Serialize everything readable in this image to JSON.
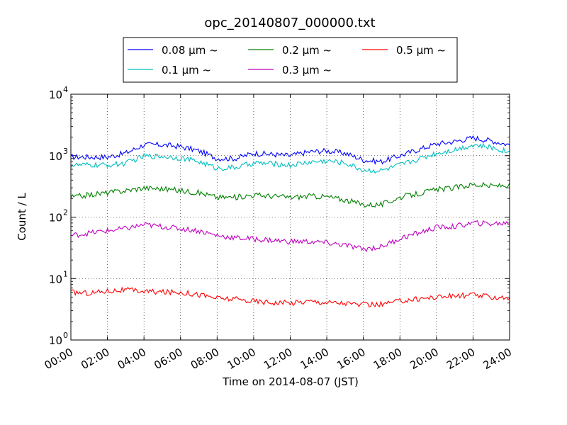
{
  "chart_data": {
    "type": "line",
    "title": "opc_20140807_000000.txt",
    "xlabel": "Time on 2014-08-07 (JST)",
    "ylabel": "Count / L",
    "x_unit": "hours",
    "xlim": [
      0,
      24
    ],
    "ylim": [
      1,
      10000
    ],
    "yscale": "log",
    "grid": true,
    "legend_position": "top",
    "x_ticks": [
      {
        "value": 0,
        "label": "00:00"
      },
      {
        "value": 2,
        "label": "02:00"
      },
      {
        "value": 4,
        "label": "04:00"
      },
      {
        "value": 6,
        "label": "06:00"
      },
      {
        "value": 8,
        "label": "08:00"
      },
      {
        "value": 10,
        "label": "10:00"
      },
      {
        "value": 12,
        "label": "12:00"
      },
      {
        "value": 14,
        "label": "14:00"
      },
      {
        "value": 16,
        "label": "16:00"
      },
      {
        "value": 18,
        "label": "18:00"
      },
      {
        "value": 20,
        "label": "20:00"
      },
      {
        "value": 22,
        "label": "22:00"
      },
      {
        "value": 24,
        "label": "24:00"
      }
    ],
    "y_ticks": [
      {
        "value": 1,
        "base": "10",
        "exp": "0"
      },
      {
        "value": 10,
        "base": "10",
        "exp": "1"
      },
      {
        "value": 100,
        "base": "10",
        "exp": "2"
      },
      {
        "value": 1000,
        "base": "10",
        "exp": "3"
      },
      {
        "value": 10000,
        "base": "10",
        "exp": "4"
      }
    ],
    "x": [
      0,
      1,
      2,
      3,
      4,
      5,
      6,
      7,
      8,
      9,
      10,
      11,
      12,
      13,
      14,
      15,
      16,
      17,
      18,
      19,
      20,
      21,
      22,
      23,
      24
    ],
    "series": [
      {
        "name": "0.08 μm ~",
        "color": "#0000ff",
        "values": [
          950,
          950,
          950,
          1100,
          1500,
          1500,
          1400,
          1200,
          900,
          900,
          1100,
          1050,
          1000,
          1150,
          1200,
          1100,
          850,
          800,
          1000,
          1250,
          1550,
          1700,
          1950,
          1750,
          1500
        ]
      },
      {
        "name": "0.1 μm ~",
        "color": "#00bfbf",
        "values": [
          700,
          700,
          700,
          750,
          980,
          980,
          920,
          800,
          620,
          640,
          760,
          740,
          700,
          780,
          820,
          760,
          580,
          570,
          700,
          880,
          1100,
          1250,
          1500,
          1350,
          1150
        ]
      },
      {
        "name": "0.2 μm ~",
        "color": "#008000",
        "values": [
          210,
          230,
          250,
          270,
          300,
          290,
          270,
          250,
          210,
          210,
          230,
          220,
          210,
          220,
          215,
          190,
          160,
          160,
          210,
          240,
          280,
          300,
          340,
          320,
          330
        ]
      },
      {
        "name": "0.3 μm ~",
        "color": "#bf00bf",
        "values": [
          50,
          55,
          60,
          65,
          75,
          70,
          65,
          60,
          50,
          46,
          44,
          42,
          40,
          40,
          38,
          35,
          30,
          33,
          45,
          55,
          68,
          70,
          80,
          78,
          80
        ]
      },
      {
        "name": "0.5 μm ~",
        "color": "#ff0000",
        "values": [
          6,
          5.8,
          6.3,
          6.5,
          6.2,
          6.0,
          6.0,
          5.5,
          4.8,
          4.6,
          4.3,
          4.1,
          4.0,
          4.3,
          4.1,
          4.0,
          3.7,
          3.8,
          4.3,
          4.7,
          5.0,
          5.2,
          5.4,
          5.0,
          4.9
        ]
      }
    ]
  }
}
